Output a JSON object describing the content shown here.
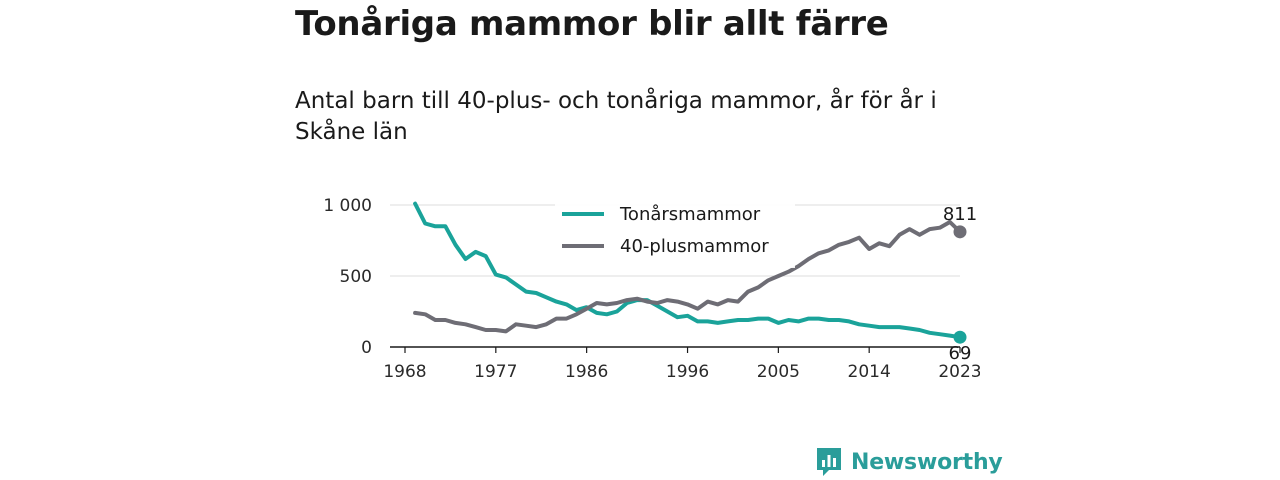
{
  "title": "Tonåriga mammor blir allt färre",
  "subtitle": "Antal barn till 40-plus- och tonåriga mammor, år för år i Skåne län",
  "brand": "Newsworthy",
  "colors": {
    "teal": "#1aa39a",
    "gray": "#6e6d75",
    "brand": "#2a9d9a"
  },
  "chart_data": {
    "type": "line",
    "xlim": [
      1968,
      2023
    ],
    "ylim": [
      0,
      1000
    ],
    "x_ticks": [
      1968,
      1977,
      1986,
      1996,
      2005,
      2014,
      2023
    ],
    "y_ticks": [
      0,
      500,
      1000
    ],
    "y_tick_labels": [
      "0",
      "500",
      "1 000"
    ],
    "x": [
      1969,
      1970,
      1971,
      1972,
      1973,
      1974,
      1975,
      1976,
      1977,
      1978,
      1979,
      1980,
      1981,
      1982,
      1983,
      1984,
      1985,
      1986,
      1987,
      1988,
      1989,
      1990,
      1991,
      1992,
      1993,
      1994,
      1995,
      1996,
      1997,
      1998,
      1999,
      2000,
      2001,
      2002,
      2003,
      2004,
      2005,
      2006,
      2007,
      2008,
      2009,
      2010,
      2011,
      2012,
      2013,
      2014,
      2015,
      2016,
      2017,
      2018,
      2019,
      2020,
      2021,
      2022,
      2023
    ],
    "series": [
      {
        "name": "Tonårsmammor",
        "color": "#1aa39a",
        "end_label": "69",
        "values": [
          1010,
          870,
          850,
          850,
          720,
          620,
          670,
          640,
          510,
          490,
          440,
          390,
          380,
          350,
          320,
          300,
          260,
          280,
          240,
          230,
          250,
          310,
          330,
          330,
          290,
          250,
          210,
          220,
          180,
          180,
          170,
          180,
          190,
          190,
          200,
          200,
          170,
          190,
          180,
          200,
          200,
          190,
          190,
          180,
          160,
          150,
          140,
          140,
          140,
          130,
          120,
          100,
          90,
          80,
          69
        ]
      },
      {
        "name": "40-plusmammor",
        "color": "#6e6d75",
        "end_label": "811",
        "values": [
          240,
          230,
          190,
          190,
          170,
          160,
          140,
          120,
          120,
          110,
          160,
          150,
          140,
          160,
          200,
          200,
          230,
          270,
          310,
          300,
          310,
          330,
          340,
          320,
          310,
          330,
          320,
          300,
          270,
          320,
          300,
          330,
          320,
          390,
          420,
          470,
          500,
          530,
          570,
          620,
          660,
          680,
          720,
          740,
          770,
          690,
          730,
          710,
          790,
          830,
          790,
          830,
          840,
          880,
          811
        ]
      }
    ],
    "legend": [
      "Tonårsmammor",
      "40-plusmammor"
    ],
    "legend_position": "top",
    "grid": "horizontal"
  }
}
